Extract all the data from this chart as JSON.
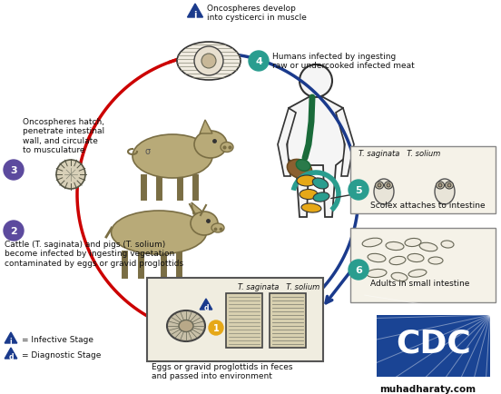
{
  "bg_color": "#ffffff",
  "step1_label": "Oncospheres develop\ninto cysticerci in muscle",
  "step2_label": "Cattle (T. saginata) and pigs (T. solium)\nbecome infected by ingesting vegetation\ncontaminated by eggs or gravid proglottids",
  "step3_label": "Oncospheres hatch,\npenetrate intestinal\nwall, and circulate\nto musculature",
  "step4_label": "Humans infected by ingesting\nraw or undercooked infected meat",
  "step5_label": "Scolex attaches to intestine",
  "step6_label": "Adults in small intestine",
  "egg_label": "Eggs or gravid proglottids in feces\nand passed into environment",
  "egg_species": "T. saginata   T. solium",
  "scolex_species": "T. saginata   T. solium",
  "infective_label": "= Infective Stage",
  "diagnostic_label": "= Diagnostic Stage",
  "muhadharaty": "muhadharaty.com",
  "blue_dark": "#1a3a8c",
  "teal": "#2a9d8f",
  "orange": "#e6a817",
  "purple": "#5c4a9e",
  "arrow_red": "#cc0000",
  "arrow_blue": "#1a3a8c",
  "animal_color": "#b8aa78",
  "animal_edge": "#7a6e44",
  "cdc_blue": "#1a4494"
}
